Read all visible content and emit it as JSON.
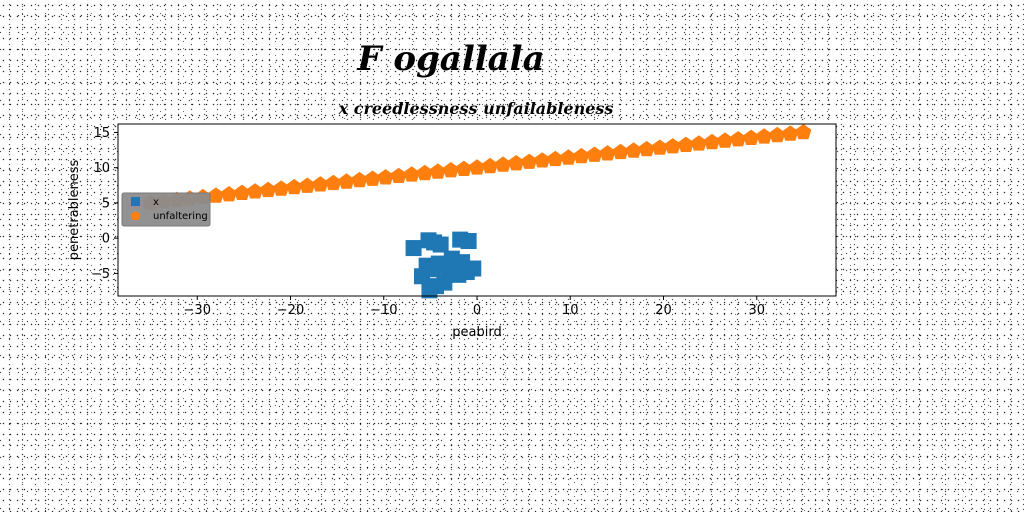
{
  "figure": {
    "suptitle": "F ogallala"
  },
  "chart_data": {
    "type": "scatter",
    "title": "x creedlessness unfailableness",
    "xlabel": "peabird",
    "ylabel": "penetrableness",
    "xlim": [
      -38.5,
      38.5
    ],
    "ylim": [
      -8.2,
      16.2
    ],
    "xticks": [
      -30,
      -20,
      -10,
      0,
      10,
      20,
      30
    ],
    "yticks": [
      -5,
      0,
      5,
      10,
      15
    ],
    "xtick_labels": [
      "−30",
      "−20",
      "−10",
      "0",
      "10",
      "20",
      "30"
    ],
    "ytick_labels": [
      "−5",
      "0",
      "5",
      "10",
      "15"
    ],
    "grid": false,
    "legend": {
      "location": "center-left",
      "facecolor": "#8c8c8c"
    },
    "series": [
      {
        "name": "x",
        "marker": "square",
        "color": "#1f77b4",
        "x": [
          -5.2,
          -6.8,
          -4.6,
          -3.9,
          -1.8,
          -0.9,
          -2.7,
          -5.4,
          -4.1,
          -2.3,
          -0.4,
          -3.1,
          -1.6,
          -4.8,
          -5.9,
          -2.0,
          -3.5,
          -1.1,
          -4.4,
          -5.1
        ],
        "y": [
          -0.3,
          -1.4,
          -0.6,
          -0.9,
          -0.2,
          -0.4,
          -2.9,
          -3.9,
          -3.6,
          -4.5,
          -4.3,
          -5.0,
          -3.4,
          -4.4,
          -5.4,
          -5.2,
          -6.3,
          -4.8,
          -6.8,
          -7.4
        ]
      },
      {
        "name": "unfaltering",
        "marker": "pentagon",
        "color": "#ff7f0e",
        "x": [
          -35.0,
          -33.6,
          -32.2,
          -30.8,
          -29.4,
          -28.0,
          -26.6,
          -25.2,
          -23.8,
          -22.4,
          -21.0,
          -19.6,
          -18.2,
          -16.8,
          -15.4,
          -14.0,
          -12.6,
          -11.2,
          -9.8,
          -8.4,
          -7.0,
          -5.6,
          -4.2,
          -2.8,
          -1.4,
          0.0,
          1.4,
          2.8,
          4.2,
          5.6,
          7.0,
          8.4,
          9.8,
          11.2,
          12.6,
          14.0,
          15.4,
          16.8,
          18.2,
          19.6,
          21.0,
          22.4,
          23.8,
          25.2,
          26.6,
          28.0,
          29.4,
          30.8,
          32.2,
          33.6,
          35.0
        ],
        "y": [
          5.0,
          5.2,
          5.4,
          5.6,
          5.8,
          6.0,
          6.2,
          6.4,
          6.6,
          6.8,
          7.0,
          7.2,
          7.4,
          7.6,
          7.8,
          8.0,
          8.2,
          8.4,
          8.6,
          8.8,
          9.0,
          9.2,
          9.4,
          9.6,
          9.8,
          10.0,
          10.2,
          10.4,
          10.6,
          10.8,
          11.0,
          11.2,
          11.4,
          11.6,
          11.8,
          12.0,
          12.2,
          12.4,
          12.6,
          12.8,
          13.0,
          13.2,
          13.4,
          13.6,
          13.8,
          14.0,
          14.2,
          14.4,
          14.6,
          14.8,
          15.0
        ]
      }
    ]
  }
}
